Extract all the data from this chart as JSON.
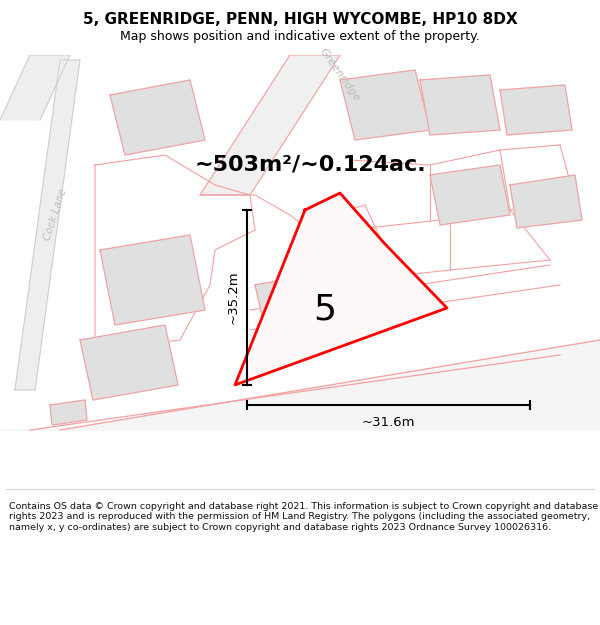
{
  "title": "5, GREENRIDGE, PENN, HIGH WYCOMBE, HP10 8DX",
  "subtitle": "Map shows position and indicative extent of the property.",
  "footer": "Contains OS data © Crown copyright and database right 2021. This information is subject to Crown copyright and database rights 2023 and is reproduced with the permission of HM Land Registry. The polygons (including the associated geometry, namely x, y co-ordinates) are subject to Crown copyright and database rights 2023 Ordnance Survey 100026316.",
  "area_label": "~503m²/~0.124ac.",
  "plot_number": "5",
  "dim_height": "~35.2m",
  "dim_width": "~31.6m",
  "plot_line_color": "#ff0000",
  "other_outline_color": "#f4a0a0",
  "street_label_greenridge": "Greenridge",
  "street_label_cock": "Cock Lane",
  "figsize": [
    6.0,
    6.25
  ],
  "dpi": 100,
  "title_fontsize": 11,
  "subtitle_fontsize": 9,
  "footer_fontsize": 6.8,
  "area_fontsize": 16,
  "number_fontsize": 26,
  "dim_fontsize": 9.5
}
